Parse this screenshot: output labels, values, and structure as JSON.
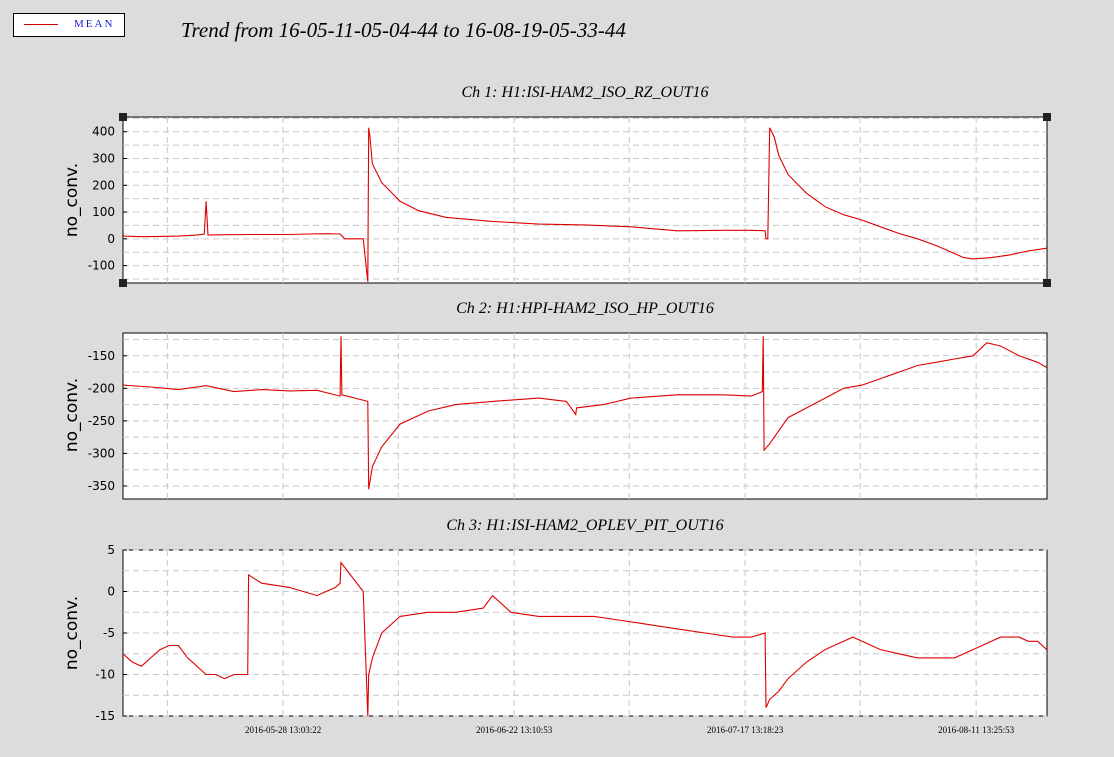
{
  "legend": {
    "label": "MEAN",
    "color": "#d40000"
  },
  "title": "Trend from 16-05-11-05-04-44 to 16-08-19-05-33-44",
  "chart_data": [
    {
      "type": "line",
      "title": "Ch 1: H1:ISI-HAM2_ISO_RZ_OUT16",
      "ylabel": "no_conv.",
      "ylim": [
        -165,
        455
      ],
      "yticks": [
        400,
        300,
        200,
        100,
        0,
        -100
      ],
      "x_range": [
        "2016-05-11 05:04:44",
        "2016-08-19 05:33:44"
      ],
      "xticks": [
        "2016-05-28 13:03:22",
        "2016-06-22 13:10:53",
        "2016-07-17 13:18:23",
        "2016-08-11 13:25:53"
      ],
      "grid": true,
      "color": "#e00000",
      "series": [
        {
          "x_days": [
            0,
            2,
            4,
            6,
            8,
            8.8,
            9,
            9.2,
            10,
            14,
            18,
            20,
            22,
            23.5,
            24,
            26,
            26.5,
            26.6,
            26.7,
            27,
            28,
            30,
            32,
            35,
            40,
            45,
            50,
            55,
            60,
            65,
            68,
            69.5,
            69.6,
            69.8,
            70,
            70.5,
            71,
            72,
            74,
            76,
            78,
            80,
            82,
            84,
            86,
            88,
            90,
            91,
            92,
            94,
            96,
            98,
            100
          ],
          "values": [
            10,
            8,
            9,
            10,
            14,
            18,
            140,
            14,
            15,
            16,
            16,
            18,
            19,
            18,
            0,
            0,
            -160,
            415,
            390,
            280,
            210,
            140,
            105,
            80,
            65,
            55,
            52,
            45,
            30,
            32,
            32,
            30,
            0,
            0,
            415,
            380,
            310,
            240,
            170,
            120,
            90,
            70,
            45,
            20,
            0,
            -25,
            -55,
            -70,
            -75,
            -70,
            -60,
            -45,
            -35
          ]
        }
      ]
    },
    {
      "type": "line",
      "title": "Ch 2: H1:HPI-HAM2_ISO_HP_OUT16",
      "ylabel": "no_conv.",
      "ylim": [
        -370,
        -115
      ],
      "yticks": [
        -150,
        -200,
        -250,
        -300,
        -350
      ],
      "x_range": [
        "2016-05-11 05:04:44",
        "2016-08-19 05:33:44"
      ],
      "xticks": [
        "2016-05-28 13:03:22",
        "2016-06-22 13:10:53",
        "2016-07-17 13:18:23",
        "2016-08-11 13:25:53"
      ],
      "grid": true,
      "color": "#e00000",
      "series": [
        {
          "x_days": [
            0,
            3,
            6,
            9,
            12,
            15,
            18,
            21,
            23.5,
            23.6,
            23.7,
            26.5,
            26.6,
            27,
            28,
            30,
            33,
            36,
            40,
            45,
            48,
            49,
            49.1,
            52,
            55,
            60,
            65,
            68,
            69.2,
            69.3,
            69.4,
            70,
            71,
            72,
            74,
            76,
            78,
            80,
            82,
            84,
            86,
            88,
            90,
            92,
            93.5,
            95,
            97,
            99,
            100
          ],
          "values": [
            -195,
            -198,
            -202,
            -196,
            -205,
            -202,
            -204,
            -203,
            -212,
            -120,
            -210,
            -220,
            -355,
            -320,
            -290,
            -255,
            -235,
            -225,
            -220,
            -215,
            -220,
            -240,
            -230,
            -225,
            -215,
            -210,
            -210,
            -212,
            -205,
            -120,
            -295,
            -285,
            -265,
            -245,
            -230,
            -215,
            -200,
            -195,
            -185,
            -175,
            -165,
            -160,
            -155,
            -150,
            -130,
            -135,
            -150,
            -160,
            -168
          ]
        }
      ]
    },
    {
      "type": "line",
      "title": "Ch 3: H1:ISI-HAM2_OPLEV_PIT_OUT16",
      "ylabel": "no_conv.",
      "ylim": [
        -15,
        5
      ],
      "yticks": [
        5,
        0,
        -5,
        -10,
        -15
      ],
      "x_range": [
        "2016-05-11 05:04:44",
        "2016-08-19 05:33:44"
      ],
      "xticks": [
        "2016-05-28 13:03:22",
        "2016-06-22 13:10:53",
        "2016-07-17 13:18:23",
        "2016-08-11 13:25:53"
      ],
      "grid": true,
      "color": "#e00000",
      "series": [
        {
          "x_days": [
            0,
            1,
            2,
            3,
            4,
            5,
            6,
            7,
            8,
            9,
            10,
            11,
            12,
            13,
            13.5,
            13.6,
            15,
            18,
            21,
            23,
            23.5,
            23.6,
            26,
            26.5,
            26.6,
            27,
            28,
            30,
            33,
            36,
            39,
            40,
            42,
            45,
            48,
            51,
            54,
            57,
            60,
            63,
            66,
            68,
            69.5,
            69.6,
            70,
            71,
            72,
            74,
            76,
            78,
            79,
            80,
            82,
            84,
            86,
            88,
            90,
            91,
            93,
            95,
            97,
            98,
            99,
            100
          ],
          "values": [
            -7.5,
            -8.5,
            -9,
            -8,
            -7,
            -6.5,
            -6.5,
            -8,
            -9,
            -10,
            -10,
            -10.5,
            -10,
            -10,
            -10,
            2,
            1,
            0.5,
            -0.5,
            0.5,
            1,
            3.5,
            0,
            -15,
            -10,
            -8,
            -5,
            -3,
            -2.5,
            -2.5,
            -2,
            -0.5,
            -2.5,
            -3,
            -3,
            -3,
            -3.5,
            -4,
            -4.5,
            -5,
            -5.5,
            -5.5,
            -5,
            -14,
            -13,
            -12,
            -10.5,
            -8.5,
            -7,
            -6,
            -5.5,
            -6,
            -7,
            -7.5,
            -8,
            -8,
            -8,
            -7.5,
            -6.5,
            -5.5,
            -5.5,
            -6,
            -6,
            -7
          ]
        }
      ]
    }
  ]
}
